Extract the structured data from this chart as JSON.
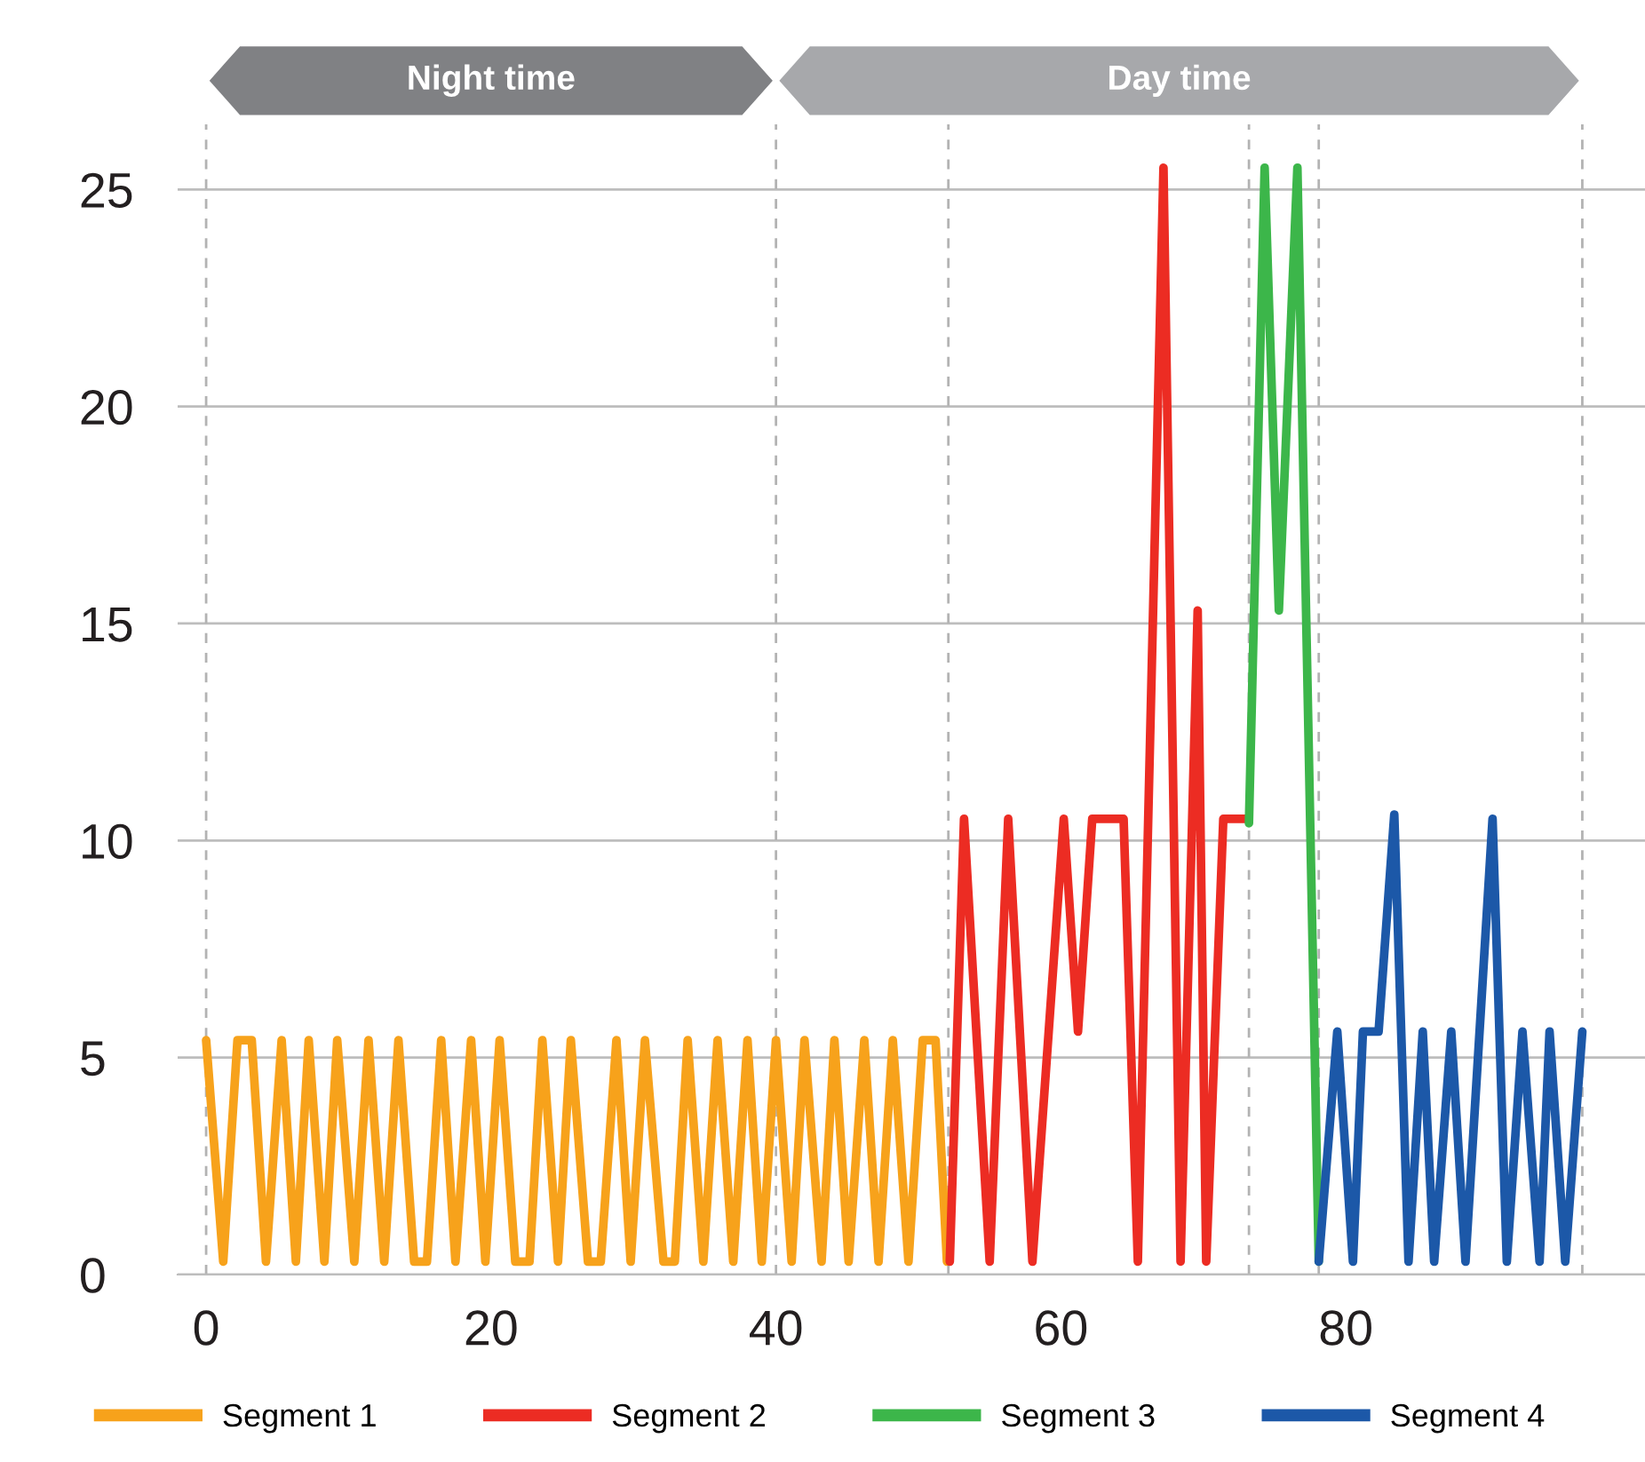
{
  "chart_data": {
    "type": "line",
    "xlim": [
      -2,
      101
    ],
    "ylim": [
      0,
      26.5
    ],
    "xticks": [
      0,
      20,
      40,
      60,
      80
    ],
    "yticks": [
      0,
      5,
      10,
      15,
      20,
      25
    ],
    "grid": "y",
    "legend": "bottom",
    "marker": "none",
    "line_style": "solid",
    "series": [
      {
        "name": "Segment 1",
        "color": "#f7a21b",
        "x": [
          0.0,
          1.2,
          2.2,
          3.2,
          4.2,
          5.3,
          6.3,
          7.2,
          8.3,
          9.2,
          10.4,
          11.4,
          12.5,
          13.5,
          14.6,
          15.5,
          16.5,
          17.5,
          18.6,
          19.6,
          20.6,
          21.7,
          22.7,
          23.6,
          24.7,
          25.6,
          26.8,
          27.7,
          28.8,
          29.8,
          30.8,
          32.1,
          32.9,
          33.8,
          34.9,
          35.9,
          37.0,
          38.0,
          39.0,
          40.0,
          41.1,
          42.0,
          43.2,
          44.1,
          45.1,
          46.2,
          47.2,
          48.2,
          49.3,
          50.3,
          51.2,
          52.0
        ],
        "values": [
          5.4,
          0.3,
          5.4,
          5.4,
          0.3,
          5.4,
          0.3,
          5.4,
          0.3,
          5.4,
          0.3,
          5.4,
          0.3,
          5.4,
          0.3,
          0.3,
          5.4,
          0.3,
          5.4,
          0.3,
          5.4,
          0.3,
          0.3,
          5.4,
          0.3,
          5.4,
          0.3,
          0.3,
          5.4,
          0.3,
          5.4,
          0.3,
          0.3,
          5.4,
          0.3,
          5.4,
          0.3,
          5.4,
          0.3,
          5.4,
          0.3,
          5.4,
          0.3,
          5.4,
          0.3,
          5.4,
          0.3,
          5.4,
          0.3,
          5.4,
          5.4,
          0.3
        ]
      },
      {
        "name": "Segment 2",
        "color": "#ec2c23",
        "x": [
          52.2,
          53.2,
          55.0,
          56.3,
          58.0,
          60.2,
          61.2,
          62.2,
          64.4,
          65.4,
          67.2,
          68.4,
          69.6,
          70.2,
          71.4,
          73.2
        ],
        "values": [
          0.3,
          10.5,
          0.3,
          10.5,
          0.3,
          10.5,
          5.6,
          10.5,
          10.5,
          0.3,
          25.5,
          0.3,
          15.3,
          0.3,
          10.5,
          10.5
        ]
      },
      {
        "name": "Segment 3",
        "color": "#3cb64a",
        "x": [
          73.2,
          74.3,
          75.3,
          76.6,
          78.1
        ],
        "values": [
          10.4,
          25.5,
          15.3,
          25.5,
          0.3
        ]
      },
      {
        "name": "Segment 4",
        "color": "#1c58a8",
        "x": [
          78.1,
          79.4,
          80.5,
          81.2,
          82.3,
          83.4,
          84.4,
          85.4,
          86.2,
          87.4,
          88.4,
          90.3,
          91.3,
          92.4,
          93.6,
          94.3,
          95.4,
          96.6
        ],
        "values": [
          0.3,
          5.6,
          0.3,
          5.6,
          5.6,
          10.6,
          0.3,
          5.6,
          0.3,
          5.6,
          0.3,
          10.5,
          0.3,
          5.6,
          0.3,
          5.6,
          0.3,
          5.6
        ]
      }
    ],
    "ref_lines": [
      {
        "axis": "x",
        "value": 0,
        "color": "#b3b3b3",
        "line_style": "dashed"
      },
      {
        "axis": "x",
        "value": 40,
        "color": "#b3b3b3",
        "line_style": "dashed"
      },
      {
        "axis": "x",
        "value": 52.1,
        "color": "#b3b3b3",
        "line_style": "dashed"
      },
      {
        "axis": "x",
        "value": 73.2,
        "color": "#b3b3b3",
        "line_style": "dashed"
      },
      {
        "axis": "x",
        "value": 78.1,
        "color": "#b3b3b3",
        "line_style": "dashed"
      },
      {
        "axis": "x",
        "value": 96.6,
        "color": "#b3b3b3",
        "line_style": "dashed"
      }
    ],
    "annotations": [
      "Night time",
      "Day time"
    ]
  }
}
